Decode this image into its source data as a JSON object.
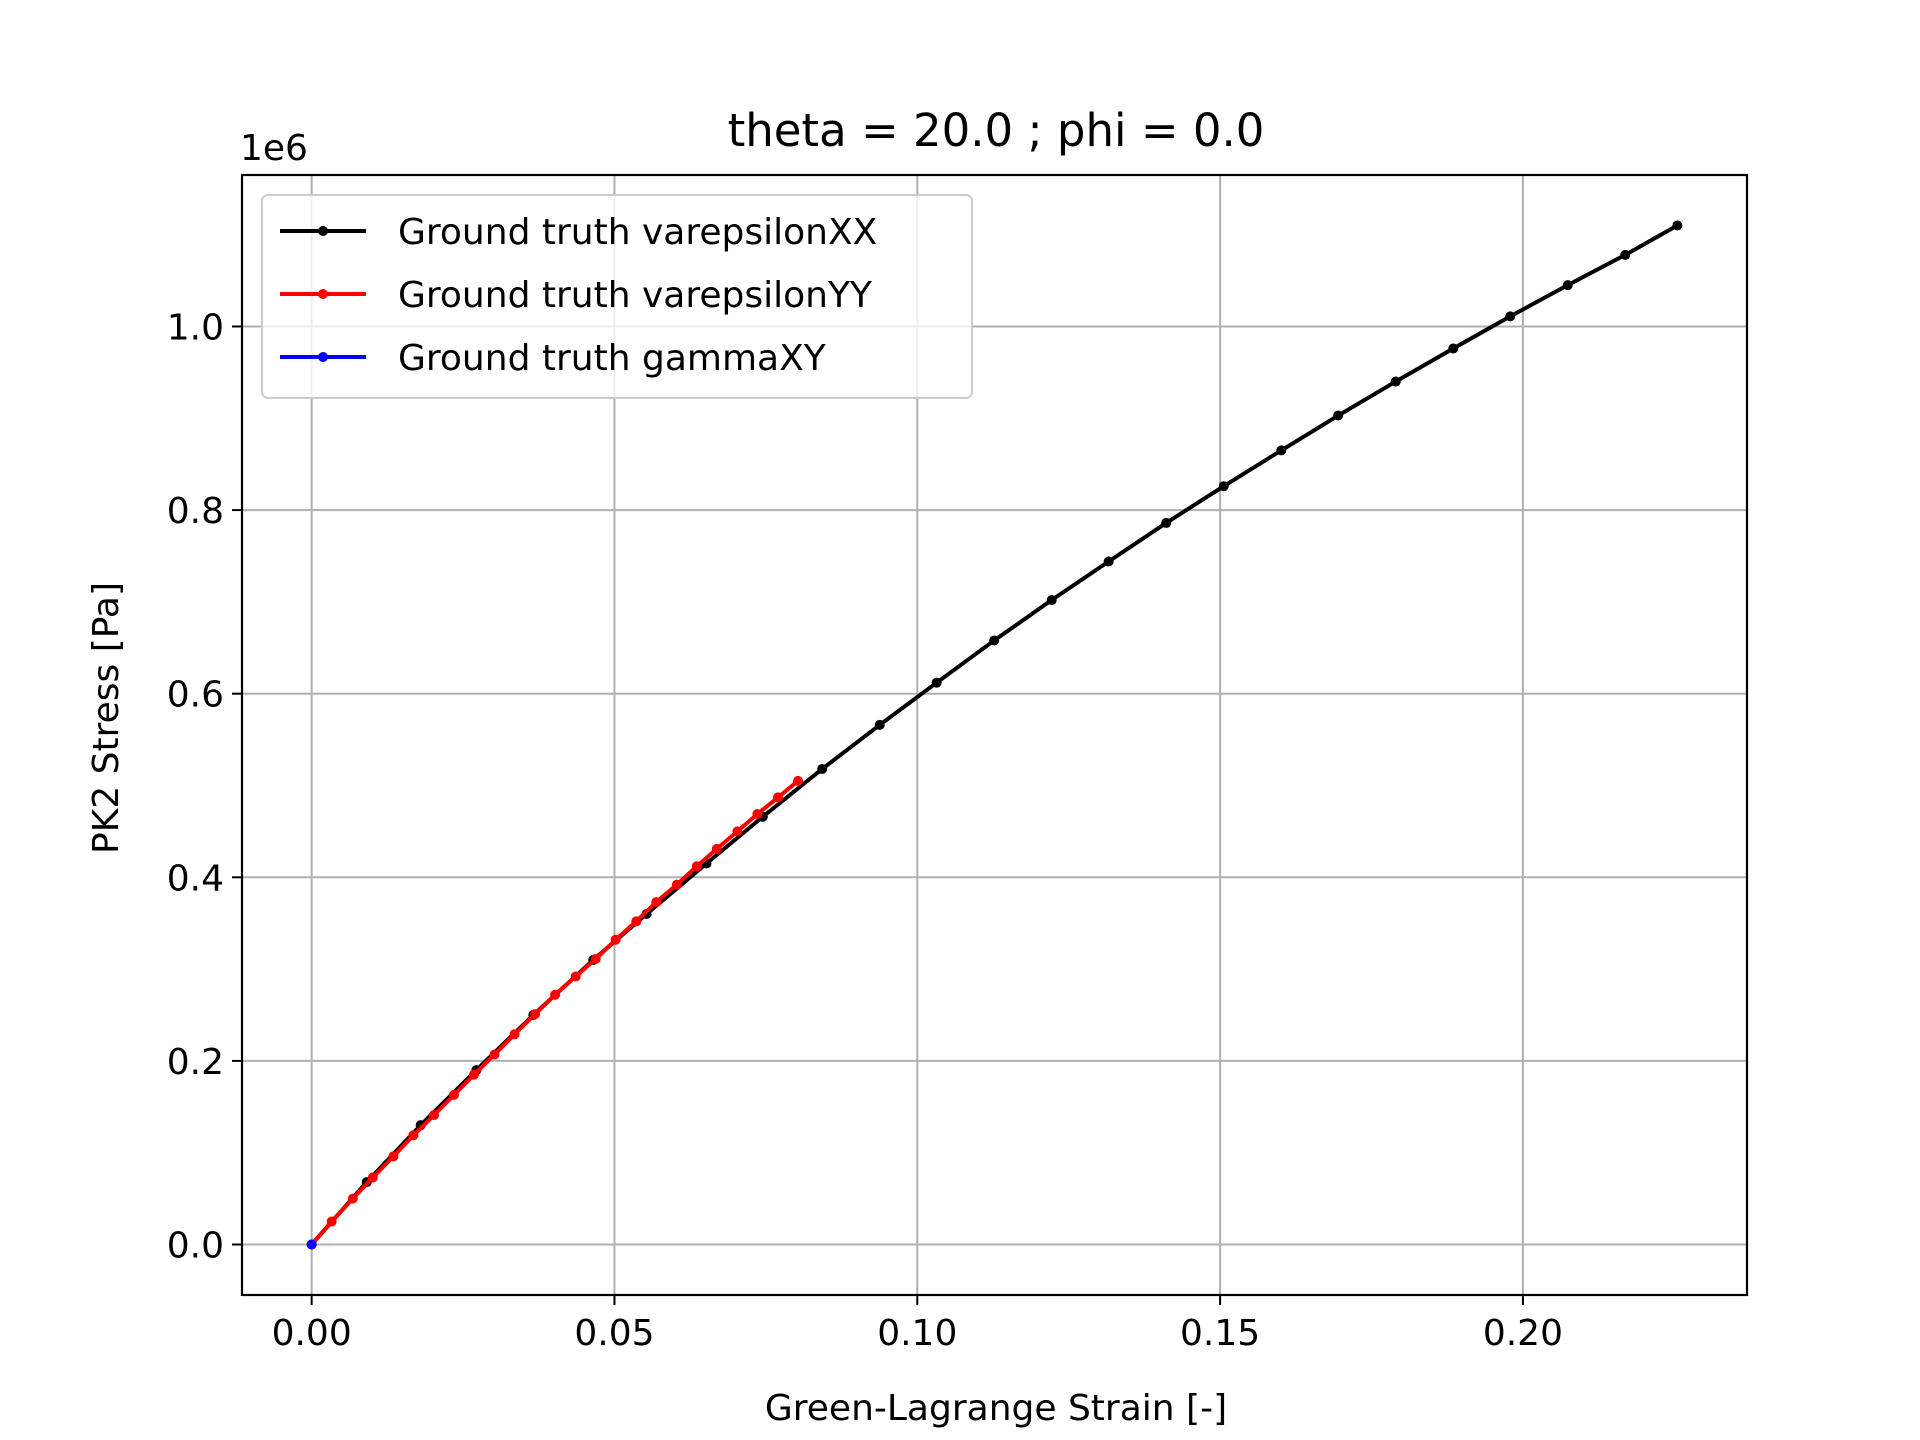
{
  "chart_data": {
    "type": "line",
    "title": "theta = 20.0 ; phi = 0.0",
    "xlabel": "Green-Lagrange Strain [-]",
    "ylabel": "PK2 Stress [Pa]",
    "y_offset_label": "1e6",
    "xlim": [
      -0.0115,
      0.237
    ],
    "ylim": [
      -0.055,
      1.165
    ],
    "y_scale": 1000000,
    "xticks": [
      0.0,
      0.05,
      0.1,
      0.15,
      0.2
    ],
    "xtick_labels": [
      "0.00",
      "0.05",
      "0.10",
      "0.15",
      "0.20"
    ],
    "yticks": [
      0.0,
      0.2,
      0.4,
      0.6,
      0.8,
      1.0
    ],
    "ytick_labels": [
      "0.0",
      "0.2",
      "0.4",
      "0.6",
      "0.8",
      "1.0"
    ],
    "grid": true,
    "legend_position": "top-left",
    "series": [
      {
        "name": "Ground truth varepsilonXX",
        "color": "#000000",
        "x": [
          0.0,
          0.0091,
          0.018,
          0.0272,
          0.0366,
          0.0465,
          0.0553,
          0.0652,
          0.0745,
          0.0843,
          0.0938,
          0.1032,
          0.1127,
          0.1222,
          0.1316,
          0.1411,
          0.1506,
          0.1601,
          0.1695,
          0.179,
          0.1885,
          0.1979,
          0.2074,
          0.2169,
          0.2255
        ],
        "y": [
          0.0,
          0.068,
          0.13,
          0.19,
          0.25,
          0.31,
          0.36,
          0.415,
          0.466,
          0.518,
          0.566,
          0.612,
          0.658,
          0.702,
          0.744,
          0.786,
          0.826,
          0.865,
          0.903,
          0.94,
          0.976,
          1.011,
          1.045,
          1.078,
          1.11
        ]
      },
      {
        "name": "Ground truth varepsilonYY",
        "color": "#ff0000",
        "x": [
          0.0,
          0.0033,
          0.0068,
          0.0101,
          0.0135,
          0.0168,
          0.0202,
          0.0235,
          0.0268,
          0.0302,
          0.0335,
          0.0369,
          0.0402,
          0.0436,
          0.0469,
          0.0502,
          0.0536,
          0.0569,
          0.0603,
          0.0636,
          0.0669,
          0.0703,
          0.0736,
          0.077,
          0.0803
        ],
        "y": [
          0.0,
          0.025,
          0.05,
          0.073,
          0.096,
          0.119,
          0.141,
          0.163,
          0.185,
          0.207,
          0.229,
          0.251,
          0.272,
          0.292,
          0.311,
          0.332,
          0.352,
          0.373,
          0.392,
          0.412,
          0.431,
          0.45,
          0.469,
          0.487,
          0.505
        ]
      },
      {
        "name": "Ground truth gammaXY",
        "color": "#0000ff",
        "x": [
          0.0
        ],
        "y": [
          0.0
        ]
      }
    ]
  }
}
